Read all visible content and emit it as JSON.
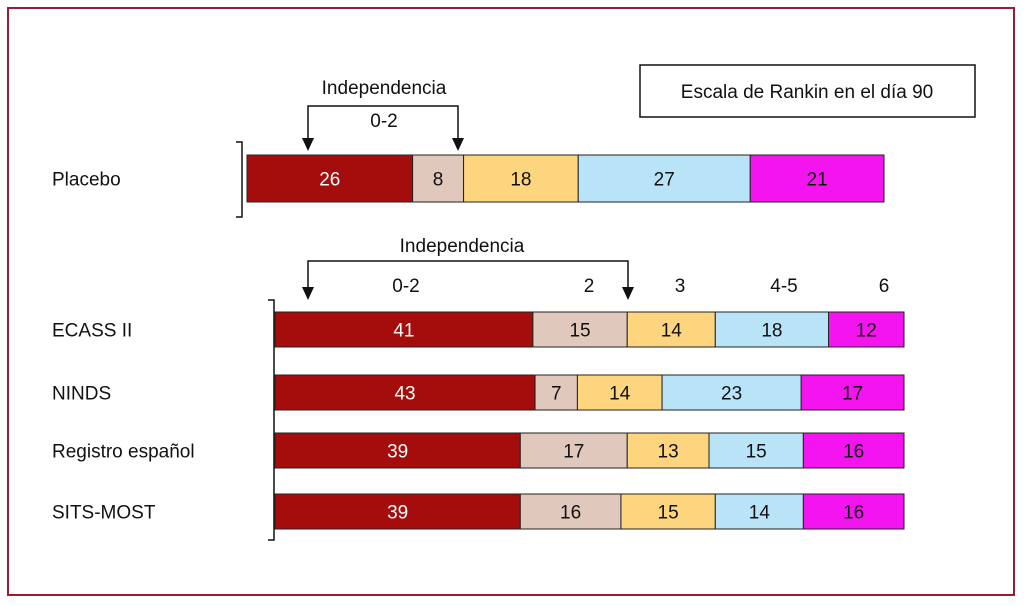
{
  "legend_box": "Escala de Rankin en el día 90",
  "colors": {
    "frame": "#9b1b30",
    "seg": [
      "#a50d0d",
      "#e1c8bd",
      "#fdd57e",
      "#b9e4f8",
      "#f314f0"
    ],
    "label_on_dark": "#ffffff",
    "label_on_light": "#111111"
  },
  "top_annotation": {
    "title": "Independencia",
    "range": "0-2"
  },
  "bottom_annotation": {
    "title": "Independencia",
    "categories": [
      "0-2",
      "2",
      "3",
      "4-5",
      "6"
    ]
  },
  "chart_data": {
    "type": "bar",
    "orientation": "horizontal-stacked",
    "title": "Escala de Rankin en el día 90",
    "categories": [
      "Placebo",
      "ECASS II",
      "NINDS",
      "Registro español",
      "SITS-MOST"
    ],
    "series": [
      {
        "values": [
          26,
          41,
          43,
          39,
          39
        ]
      },
      {
        "values": [
          8,
          15,
          7,
          17,
          16
        ]
      },
      {
        "values": [
          18,
          14,
          14,
          13,
          15
        ]
      },
      {
        "values": [
          27,
          18,
          23,
          15,
          14
        ]
      },
      {
        "values": [
          21,
          12,
          17,
          16,
          16
        ]
      }
    ],
    "grid": false
  }
}
